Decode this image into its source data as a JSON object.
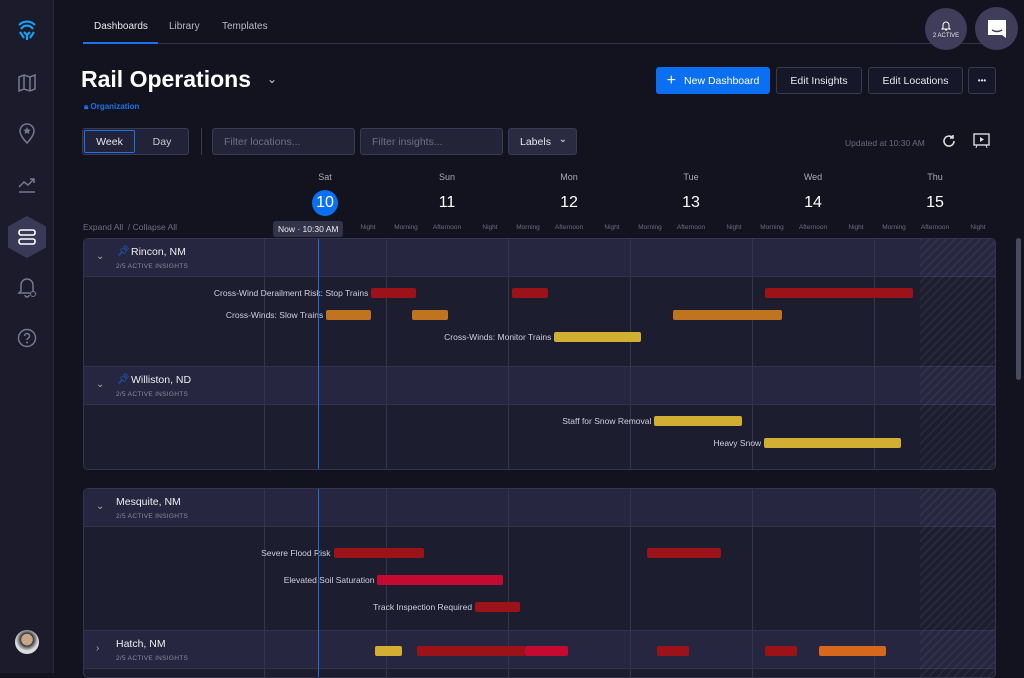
{
  "nav": {
    "tabs": [
      "Dashboards",
      "Library",
      "Templates"
    ],
    "active_tab": 0
  },
  "sidebar": {
    "items": [
      "logo",
      "map",
      "places",
      "trends",
      "dashboards",
      "alerts",
      "help"
    ],
    "active": "dashboards"
  },
  "notifications": {
    "label": "2 ACTIVE"
  },
  "page": {
    "title": "Rail Operations",
    "visibility": "Organization"
  },
  "toolbar": {
    "new_dashboard": "New Dashboard",
    "edit_insights": "Edit Insights",
    "edit_locations": "Edit Locations",
    "more": "•••"
  },
  "filters": {
    "week": "Week",
    "day": "Day",
    "locations_placeholder": "Filter locations...",
    "insights_placeholder": "Filter insights...",
    "labels": "Labels",
    "updated": "Updated at 10:30 AM"
  },
  "timeline": {
    "expand_all": "Expand All",
    "collapse_all": "/ Collapse All",
    "now_label": "Now · 10:30 AM",
    "now_offset_days": 0.44,
    "days": [
      {
        "name": "Sat",
        "num": "10",
        "today": true
      },
      {
        "name": "Sun",
        "num": "11"
      },
      {
        "name": "Mon",
        "num": "12"
      },
      {
        "name": "Tue",
        "num": "13"
      },
      {
        "name": "Wed",
        "num": "14"
      },
      {
        "name": "Thu",
        "num": "15"
      }
    ],
    "periods": [
      "Morning",
      "Afternoon",
      "Night"
    ],
    "forecast_end_days": 5.38,
    "colors": {
      "severe": "#9b1318",
      "warning": "#c17420",
      "watch": "#d2ae33",
      "critical": "#c50a32",
      "high": "#d5681a"
    }
  },
  "groups": [
    {
      "locations": [
        {
          "name": "Rincon, NM",
          "pinned": true,
          "expanded": true,
          "sub": "2/5 ACTIVE INSIGHTS",
          "insights": [
            {
              "label": "Cross-Wind Derailment Risk: Stop Trains",
              "bars": [
                {
                  "s": 0.88,
                  "e": 1.25,
                  "c": "severe"
                },
                {
                  "s": 2.03,
                  "e": 2.33,
                  "c": "severe"
                },
                {
                  "s": 4.11,
                  "e": 5.32,
                  "c": "severe"
                }
              ]
            },
            {
              "label": "Cross-Winds: Slow Trains",
              "bars": [
                {
                  "s": 0.51,
                  "e": 0.88,
                  "c": "warning"
                },
                {
                  "s": 1.21,
                  "e": 1.51,
                  "c": "warning"
                },
                {
                  "s": 3.35,
                  "e": 4.25,
                  "c": "warning"
                }
              ]
            },
            {
              "label": "Cross-Winds: Monitor Trains",
              "bars": [
                {
                  "s": 2.38,
                  "e": 3.09,
                  "c": "watch"
                }
              ]
            }
          ]
        },
        {
          "name": "Williston, ND",
          "pinned": true,
          "expanded": true,
          "sub": "2/5 ACTIVE INSIGHTS",
          "insights": [
            {
              "label": "Staff for Snow Removal",
              "bars": [
                {
                  "s": 3.2,
                  "e": 3.92,
                  "c": "watch"
                }
              ]
            },
            {
              "label": "Heavy Snow",
              "bars": [
                {
                  "s": 4.1,
                  "e": 5.22,
                  "c": "watch"
                }
              ]
            }
          ]
        }
      ]
    },
    {
      "locations": [
        {
          "name": "Mesquite, NM",
          "pinned": false,
          "expanded": true,
          "sub": "2/5 ACTIVE INSIGHTS",
          "insights": [
            {
              "label": "Severe Flood Risk",
              "bars": [
                {
                  "s": 0.57,
                  "e": 1.31,
                  "c": "severe"
                },
                {
                  "s": 3.14,
                  "e": 3.75,
                  "c": "severe"
                }
              ]
            },
            {
              "label": "Elevated Soil Saturation",
              "bars": [
                {
                  "s": 0.93,
                  "e": 1.96,
                  "c": "critical"
                }
              ]
            },
            {
              "label": "Track Inspection Required",
              "bars": [
                {
                  "s": 1.73,
                  "e": 2.1,
                  "c": "severe"
                }
              ]
            }
          ]
        },
        {
          "name": "Hatch, NM",
          "pinned": false,
          "expanded": false,
          "sub": "2/5 ACTIVE INSIGHTS",
          "summary_bars": [
            {
              "s": 0.91,
              "e": 1.13,
              "c": "watch"
            },
            {
              "s": 1.25,
              "e": 2.14,
              "c": "severe"
            },
            {
              "s": 2.14,
              "e": 2.49,
              "c": "critical"
            },
            {
              "s": 3.22,
              "e": 3.48,
              "c": "severe"
            },
            {
              "s": 4.11,
              "e": 4.37,
              "c": "severe"
            },
            {
              "s": 4.55,
              "e": 5.1,
              "c": "high"
            }
          ]
        }
      ]
    }
  ]
}
